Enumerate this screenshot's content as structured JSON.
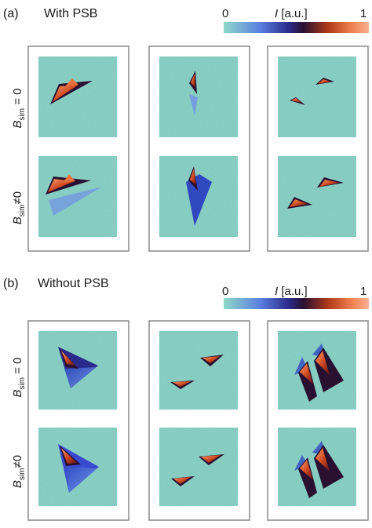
{
  "figure": {
    "panels": [
      {
        "label": "(a)",
        "title": "With PSB",
        "colorbar": {
          "min": "0",
          "max": "1",
          "label_var": "I",
          "label_unit": " [a.u.]"
        },
        "rows": [
          {
            "main": "B",
            "sub": "sim",
            "rel": " = 0"
          },
          {
            "main": "B",
            "sub": "sim",
            "rel": "≠0"
          }
        ]
      },
      {
        "label": "(b)",
        "title": "Without PSB",
        "colorbar": {
          "min": "0",
          "max": "1",
          "label_var": "I",
          "label_unit": " [a.u.]"
        },
        "rows": [
          {
            "main": "B",
            "sub": "sim",
            "rel": " = 0"
          },
          {
            "main": "B",
            "sub": "sim",
            "rel": "≠0"
          }
        ]
      }
    ],
    "colors": {
      "background_field": "#8fd2c6",
      "colormap": [
        "#8fd8c8",
        "#5b7fe0",
        "#2a2a8a",
        "#2a1030",
        "#b03a1a",
        "#f08050",
        "#f8b090"
      ],
      "frame": "#8a8a8a"
    }
  }
}
